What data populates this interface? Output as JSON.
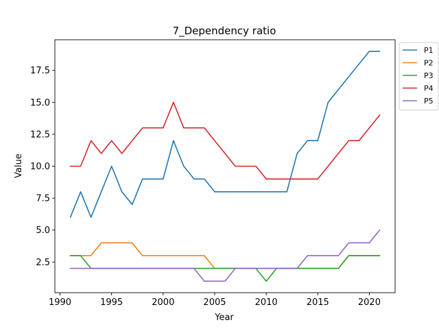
{
  "chart_data": {
    "type": "line",
    "title": "7_Dependency ratio",
    "xlabel": "Year",
    "ylabel": "Value",
    "xlim": [
      1989.5,
      2022.5
    ],
    "ylim": [
      0.1,
      19.9
    ],
    "xticks": [
      1990,
      1995,
      2000,
      2005,
      2010,
      2015,
      2020
    ],
    "yticks": [
      2.5,
      5.0,
      7.5,
      10.0,
      12.5,
      15.0,
      17.5
    ],
    "ytick_labels": [
      "2.5",
      "5.0",
      "7.5",
      "10.0",
      "12.5",
      "15.0",
      "17.5"
    ],
    "grid": false,
    "legend_position": "outside-top-right",
    "x": [
      1991,
      1992,
      1993,
      1994,
      1995,
      1996,
      1997,
      1998,
      1999,
      2000,
      2001,
      2002,
      2003,
      2004,
      2005,
      2006,
      2007,
      2008,
      2009,
      2010,
      2011,
      2012,
      2013,
      2014,
      2015,
      2016,
      2017,
      2018,
      2019,
      2020,
      2021
    ],
    "series": [
      {
        "name": "P1",
        "color": "#1f77b4",
        "values": [
          6,
          8,
          6,
          8,
          10,
          8,
          7,
          9,
          9,
          9,
          12,
          10,
          9,
          9,
          8,
          8,
          8,
          8,
          8,
          8,
          8,
          8,
          11,
          12,
          12,
          15,
          16,
          17,
          18,
          19,
          19
        ]
      },
      {
        "name": "P2",
        "color": "#ff7f0e",
        "values": [
          3,
          3,
          3,
          4,
          4,
          4,
          4,
          3,
          3,
          3,
          3,
          3,
          3,
          3,
          2,
          2,
          2,
          2,
          2,
          2,
          2,
          2,
          2,
          2,
          2,
          2,
          2,
          3,
          3,
          3,
          3
        ]
      },
      {
        "name": "P3",
        "color": "#2ca02c",
        "values": [
          3,
          3,
          2,
          2,
          2,
          2,
          2,
          2,
          2,
          2,
          2,
          2,
          2,
          2,
          2,
          2,
          2,
          2,
          2,
          1,
          2,
          2,
          2,
          2,
          2,
          2,
          2,
          3,
          3,
          3,
          3
        ]
      },
      {
        "name": "P4",
        "color": "#d62728",
        "values": [
          10,
          10,
          12,
          11,
          12,
          11,
          12,
          13,
          13,
          13,
          15,
          13,
          13,
          13,
          12,
          11,
          10,
          10,
          10,
          9,
          9,
          9,
          9,
          9,
          9,
          10,
          11,
          12,
          12,
          13,
          14
        ]
      },
      {
        "name": "P5",
        "color": "#9467bd",
        "values": [
          2,
          2,
          2,
          2,
          2,
          2,
          2,
          2,
          2,
          2,
          2,
          2,
          2,
          1,
          1,
          1,
          2,
          2,
          2,
          2,
          2,
          2,
          2,
          3,
          3,
          3,
          3,
          4,
          4,
          4,
          5
        ]
      }
    ]
  }
}
